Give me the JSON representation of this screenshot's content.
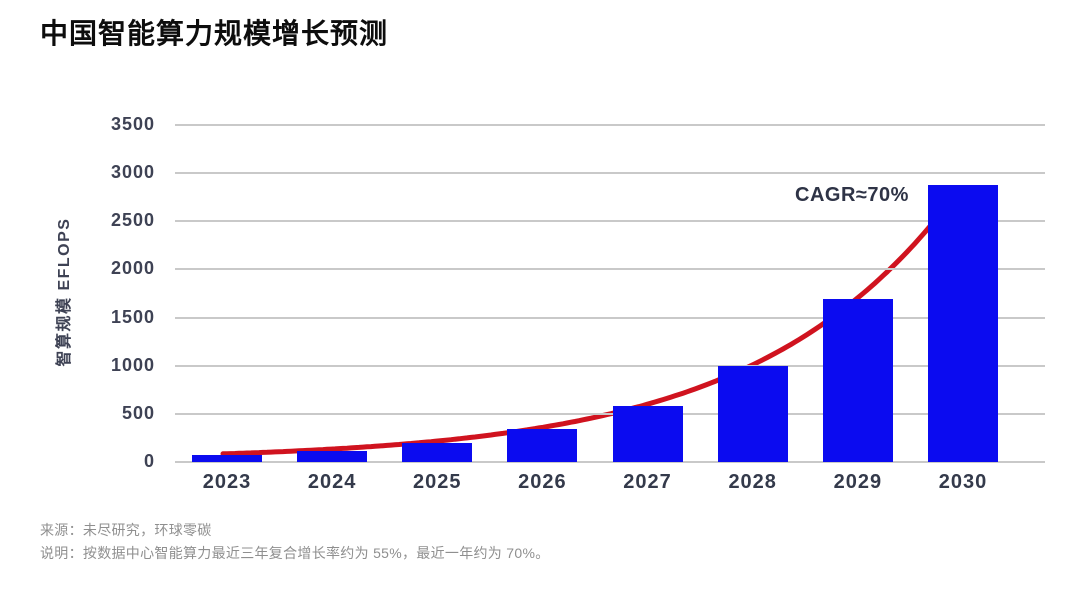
{
  "title": "中国智能算力规模增长预测",
  "chart_data": {
    "type": "bar",
    "title": "中国智能算力规模增长预测",
    "categories": [
      "2023",
      "2024",
      "2025",
      "2026",
      "2027",
      "2028",
      "2029",
      "2030"
    ],
    "series": [
      {
        "name": "智算规模",
        "values": [
          70,
          119,
          202,
          344,
          585,
          994,
          1690,
          2873
        ]
      }
    ],
    "values": [
      70,
      119,
      202,
      344,
      585,
      994,
      1690,
      2873
    ],
    "xlabel": "",
    "ylabel": "智算规模 EFLOPS",
    "ylim": [
      0,
      3500
    ],
    "ytick_step": 500,
    "grid": "horizontal",
    "legend": "none",
    "annotation": "CAGR≈70%",
    "trendline": {
      "type": "exponential",
      "label": "CAGR≈70%"
    }
  },
  "colors": {
    "bar": "#0b0bf0",
    "trend": "#d0131f",
    "grid": "#c9c9c9",
    "axis_text": "#3e4254",
    "title_text": "#0d0d0d",
    "footer_text": "#8f8f8f"
  },
  "footer": {
    "source": "来源：未尽研究，环球零碳",
    "note": "说明：按数据中心智能算力最近三年复合增长率约为 55%，最近一年约为 70%。"
  }
}
